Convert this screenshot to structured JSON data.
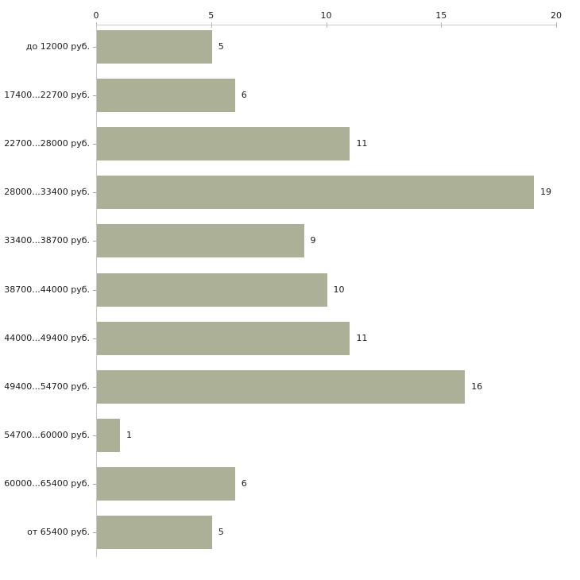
{
  "chart_data": {
    "type": "bar",
    "orientation": "horizontal",
    "title": "",
    "xlabel": "",
    "ylabel": "",
    "categories": [
      "до 12000 руб.",
      "17400...22700 руб.",
      "22700...28000 руб.",
      "28000...33400 руб.",
      "33400...38700 руб.",
      "38700...44000 руб.",
      "44000...49400 руб.",
      "49400...54700 руб.",
      "54700...60000 руб.",
      "60000...65400 руб.",
      "от 65400 руб."
    ],
    "values": [
      5,
      6,
      11,
      19,
      9,
      10,
      11,
      16,
      1,
      6,
      5
    ],
    "xlim": [
      0,
      20
    ],
    "x_ticks": [
      0,
      5,
      10,
      15,
      20
    ],
    "value_labels_shown": true,
    "grid": false,
    "legend": null,
    "colors": {
      "bar": "#abb096",
      "axis_line": "#c8c8c8",
      "x_tick_mark": "#bdbd92",
      "y_tick_mark": "#a5a592",
      "text": "#1a1a1a",
      "background": "#ffffff"
    }
  }
}
